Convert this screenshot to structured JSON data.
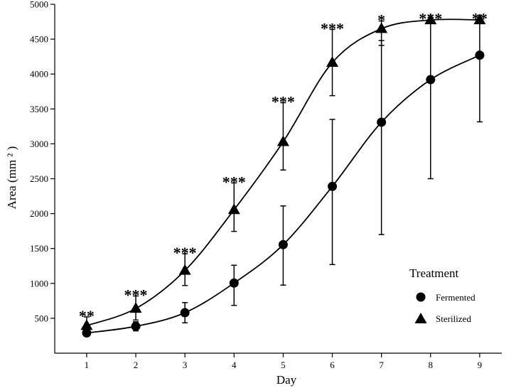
{
  "chart_data": {
    "type": "line",
    "xlabel": "Day",
    "ylabel": "Area (mm ² )",
    "x": [
      1,
      2,
      3,
      4,
      5,
      6,
      7,
      8,
      9
    ],
    "xlim": [
      0.35,
      9.45
    ],
    "ylim": [
      0,
      5000
    ],
    "yticks": [
      500,
      1000,
      1500,
      2000,
      2500,
      3000,
      3500,
      4000,
      4500,
      5000
    ],
    "series": [
      {
        "name": "Fermented",
        "marker": "circle",
        "values": [
          290,
          385,
          580,
          1005,
          1555,
          2390,
          3310,
          3920,
          4270
        ],
        "err_low": [
          280,
          320,
          435,
          685,
          975,
          1270,
          1700,
          2500,
          3315
        ],
        "err_high": [
          300,
          450,
          725,
          1260,
          2110,
          3350,
          4480,
          4780,
          4770
        ]
      },
      {
        "name": "Sterilized",
        "marker": "triangle",
        "values": [
          395,
          640,
          1185,
          2055,
          3030,
          4165,
          4650,
          4775,
          4775
        ],
        "err_low": [
          270,
          475,
          970,
          1745,
          2625,
          3690,
          4410,
          4770,
          4770
        ],
        "err_high": [
          520,
          820,
          1425,
          2440,
          3590,
          4640,
          4760,
          4780,
          4780
        ]
      }
    ],
    "significance": [
      "**",
      "***",
      "***",
      "***",
      "***",
      "***",
      "*",
      "***",
      "**"
    ],
    "legend": {
      "title": "Treatment",
      "position": "bottom-right",
      "entries": [
        "Fermented",
        "Sterilized"
      ]
    },
    "grid": false
  }
}
